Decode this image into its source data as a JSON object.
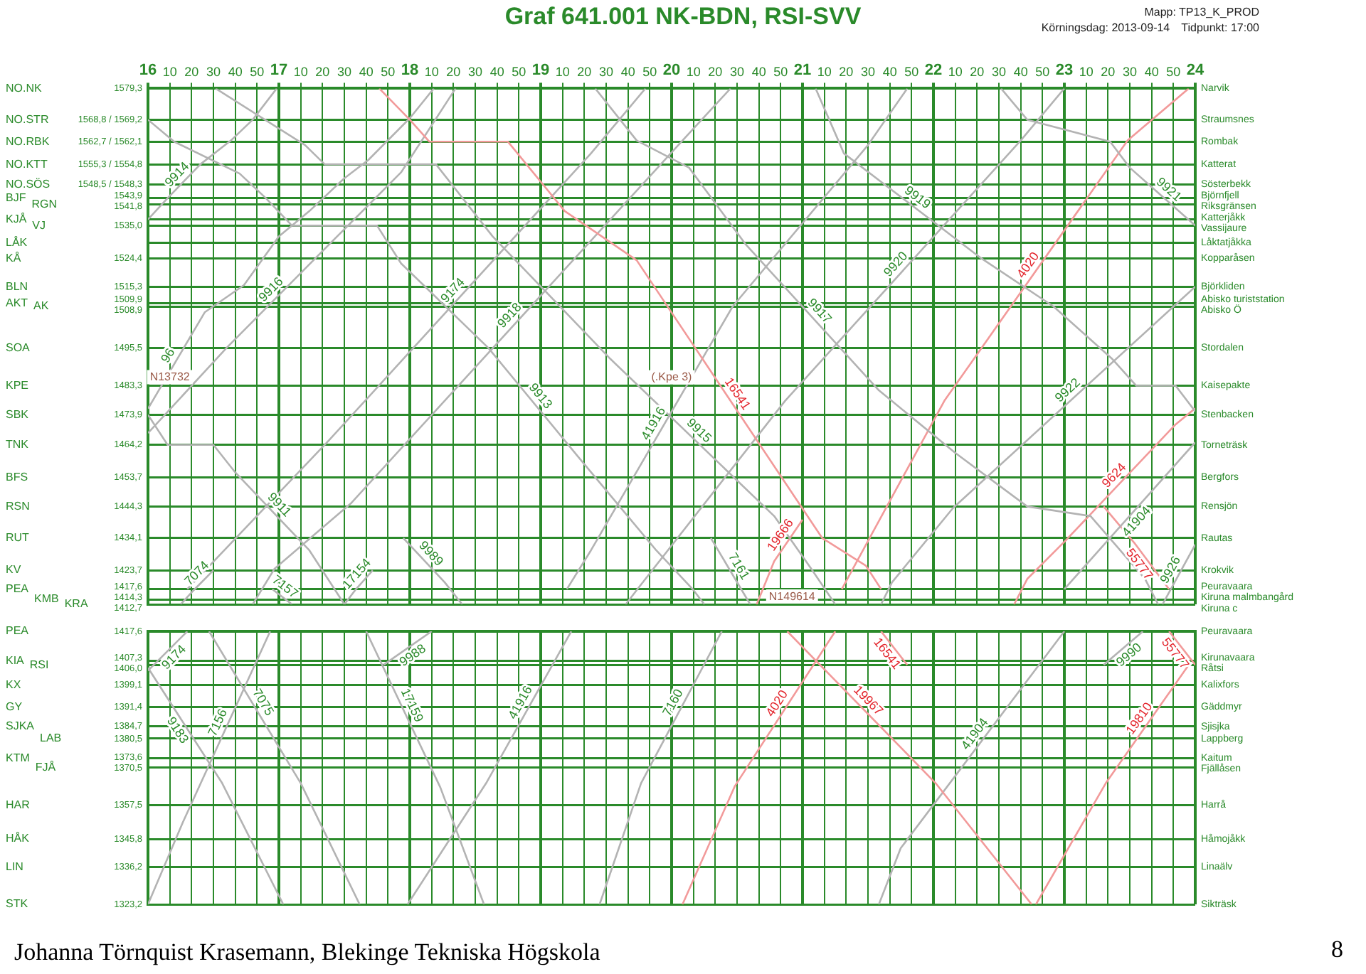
{
  "chart_data": [
    {
      "type": "line",
      "title": "Graf 641.001 NK-BDN, RSI-SVV",
      "annotations": [
        "Mapp: TP13_K_PROD",
        "Körningsdag: 2013-09-14",
        "Tidpunkt: 17:00",
        "(.Kpe 3)",
        "N149614",
        "NO.NK",
        "NO.STR",
        "NO.RBK",
        "NO.KTT",
        "NO.SÖS",
        "BJF",
        "RGN",
        "KJÅ",
        "VJ",
        "LÅK",
        "KÅ",
        "BLN",
        "AKT",
        "AK",
        "SOA",
        "KPE",
        "SBK",
        "TNK",
        "BFS",
        "RSN",
        "RUT",
        "KV",
        "PEA",
        "KMB",
        "KRA",
        "Narvik",
        "Straumsnes",
        "Rombak",
        "Katterat",
        "Sösterbekk",
        "Björnfjell",
        "Riksgränsen",
        "Katterjåkk",
        "Vassijaure",
        "Låktatjåkka",
        "Kopparåsen",
        "Björkliden",
        "Abisko turiststation",
        "Abisko Ö",
        "Stordalen",
        "Kaisepakte",
        "Stenbacken",
        "Torneträsk",
        "Bergfors",
        "Rensjön",
        "Rautas",
        "Krokvik",
        "Peuravaara",
        "Kiruna malmbangård",
        "Kiruna c",
        {
          "text": "N13732",
          "x": "2013-09-14T16:10",
          "y": 1483.3
        }
      ],
      "xlim": [
        "2013-09-14T16:00",
        "2013-09-15T00:00"
      ],
      "xticks": [
        {
          "value": "2013-09-14T16:00",
          "label": "16"
        },
        {
          "value": "2013-09-14T16:10",
          "label": "10"
        },
        {
          "value": "2013-09-14T16:20",
          "label": "20"
        },
        {
          "value": "2013-09-14T16:30",
          "label": "30"
        },
        {
          "value": "2013-09-14T16:40",
          "label": "40"
        },
        {
          "value": "2013-09-14T16:50",
          "label": "50"
        },
        {
          "value": "2013-09-14T17:00",
          "label": "17"
        },
        {
          "value": "2013-09-14T17:10",
          "label": "10"
        },
        {
          "value": "2013-09-14T17:20",
          "label": "20"
        },
        {
          "value": "2013-09-14T17:30",
          "label": "30"
        },
        {
          "value": "2013-09-14T17:40",
          "label": "40"
        },
        {
          "value": "2013-09-14T17:50",
          "label": "50"
        },
        {
          "value": "2013-09-14T18:00",
          "label": "18"
        },
        {
          "value": "2013-09-14T18:10",
          "label": "10"
        },
        {
          "value": "2013-09-14T18:20",
          "label": "20"
        },
        {
          "value": "2013-09-14T18:30",
          "label": "30"
        },
        {
          "value": "2013-09-14T18:40",
          "label": "40"
        },
        {
          "value": "2013-09-14T18:50",
          "label": "50"
        },
        {
          "value": "2013-09-14T19:00",
          "label": "19"
        },
        {
          "value": "2013-09-14T19:10",
          "label": "10"
        },
        {
          "value": "2013-09-14T19:20",
          "label": "20"
        },
        {
          "value": "2013-09-14T19:30",
          "label": "30"
        },
        {
          "value": "2013-09-14T19:40",
          "label": "40"
        },
        {
          "value": "2013-09-14T19:50",
          "label": "50"
        },
        {
          "value": "2013-09-14T20:00",
          "label": "20"
        },
        {
          "value": "2013-09-14T20:10",
          "label": "10"
        },
        {
          "value": "2013-09-14T20:20",
          "label": "20"
        },
        {
          "value": "2013-09-14T20:30",
          "label": "30"
        },
        {
          "value": "2013-09-14T20:40",
          "label": "40"
        },
        {
          "value": "2013-09-14T20:50",
          "label": "50"
        },
        {
          "value": "2013-09-14T21:00",
          "label": "21"
        },
        {
          "value": "2013-09-14T21:10",
          "label": "10"
        },
        {
          "value": "2013-09-14T21:20",
          "label": "20"
        },
        {
          "value": "2013-09-14T21:30",
          "label": "30"
        },
        {
          "value": "2013-09-14T21:40",
          "label": "40"
        },
        {
          "value": "2013-09-14T21:50",
          "label": "50"
        },
        {
          "value": "2013-09-14T22:00",
          "label": "22"
        },
        {
          "value": "2013-09-14T22:10",
          "label": "10"
        },
        {
          "value": "2013-09-14T22:20",
          "label": "20"
        },
        {
          "value": "2013-09-14T22:30",
          "label": "30"
        },
        {
          "value": "2013-09-14T22:40",
          "label": "40"
        },
        {
          "value": "2013-09-14T22:50",
          "label": "50"
        },
        {
          "value": "2013-09-14T23:00",
          "label": "23"
        },
        {
          "value": "2013-09-14T23:10",
          "label": "10"
        },
        {
          "value": "2013-09-14T23:20",
          "label": "20"
        },
        {
          "value": "2013-09-14T23:30",
          "label": "30"
        },
        {
          "value": "2013-09-14T23:40",
          "label": "40"
        },
        {
          "value": "2013-09-14T23:50",
          "label": "50"
        },
        {
          "value": "2013-09-15T00:00",
          "label": "24"
        }
      ],
      "ylim": [
        1412.7,
        1579.3
      ],
      "yticks": [
        {
          "value": 1579.3,
          "label": "1579,3"
        },
        {
          "value": 1569.2,
          "label": "1568,8 / 1569,2"
        },
        {
          "value": 1562.1,
          "label": "1562,7 / 1562,1"
        },
        {
          "value": 1554.8,
          "label": "1555,3 / 1554,8"
        },
        {
          "value": 1548.3,
          "label": "1548,5 / 1548,3"
        },
        {
          "value": 1543.9,
          "label": "1543,9"
        },
        {
          "value": 1541.8,
          "label": "1541,8"
        },
        {
          "value": 1537.0,
          "label": null
        },
        {
          "value": 1535.0,
          "label": "1535,0"
        },
        {
          "value": 1529.5,
          "label": null
        },
        {
          "value": 1524.4,
          "label": "1524,4"
        },
        {
          "value": 1515.3,
          "label": "1515,3"
        },
        {
          "value": 1509.9,
          "label": "1509,9"
        },
        {
          "value": 1508.9,
          "label": "1508,9"
        },
        {
          "value": 1495.5,
          "label": "1495,5"
        },
        {
          "value": 1483.3,
          "label": "1483,3"
        },
        {
          "value": 1473.9,
          "label": "1473,9"
        },
        {
          "value": 1464.2,
          "label": "1464,2"
        },
        {
          "value": 1453.7,
          "label": "1453,7"
        },
        {
          "value": 1444.3,
          "label": "1444,3"
        },
        {
          "value": 1434.1,
          "label": "1434,1"
        },
        {
          "value": 1423.7,
          "label": "1423,7"
        },
        {
          "value": 1417.6,
          "label": "1417,6"
        },
        {
          "value": 1414.3,
          "label": "1414,3"
        },
        {
          "value": 1412.7,
          "label": "1412,7"
        }
      ],
      "grid": true,
      "series": [
        {
          "name": "9911",
          "color": "#b3b3b3",
          "x": [
            "2013-09-14T16:00",
            "2013-09-14T16:09",
            "2013-09-14T16:30",
            "2013-09-14T16:40",
            "2013-09-14T17:14",
            "2013-09-14T17:30"
          ],
          "values": [
            1473.9,
            1464.2,
            1464.2,
            1455.3,
            1430.1,
            1412.7
          ]
        },
        {
          "name": "9913",
          "color": "#b3b3b3",
          "x": [
            "2013-09-14T16:00",
            "2013-09-14T16:12",
            "2013-09-14T16:42",
            "2013-09-14T16:54",
            "2013-09-14T17:06",
            "2013-09-14T17:45",
            "2013-09-14T17:56",
            "2013-09-14T18:36",
            "2013-09-14T19:17",
            "2013-09-14T19:53",
            "2013-09-14T20:10",
            "2013-09-14T20:15"
          ],
          "values": [
            1569.2,
            1562.1,
            1551.8,
            1543.9,
            1535.0,
            1535.0,
            1522.8,
            1495.5,
            1460.5,
            1430.1,
            1417.3,
            1412.7
          ]
        },
        {
          "name": "9915",
          "color": "#b3b3b3",
          "x": [
            "2013-09-14T16:31",
            "2013-09-14T17:12",
            "2013-09-14T17:21",
            "2013-09-14T18:12",
            "2013-09-14T18:38",
            "2013-09-14T19:32",
            "2013-09-14T20:47",
            "2013-09-14T21:04",
            "2013-09-14T21:15"
          ],
          "values": [
            1579.3,
            1561.0,
            1554.8,
            1554.8,
            1531.5,
            1491.9,
            1441.2,
            1424.2,
            1412.7
          ]
        },
        {
          "name": "16541",
          "color": "#f29a9a",
          "x": [
            "2013-09-14T17:46",
            "2013-09-14T18:00",
            "2013-09-14T18:09",
            "2013-09-14T18:45",
            "2013-09-14T19:11",
            "2013-09-14T19:44",
            "2013-09-14T21:09",
            "2013-09-14T21:29",
            "2013-09-14T21:36"
          ],
          "values": [
            1579.3,
            1569.2,
            1562.1,
            1562.1,
            1539.7,
            1523.8,
            1434.1,
            1425.2,
            1417.6
          ]
        },
        {
          "name": "9917",
          "color": "#b3b3b3",
          "x": [
            "2013-09-14T19:25",
            "2013-09-14T19:44",
            "2013-09-14T20:08",
            "2013-09-14T20:34",
            "2013-09-14T21:35",
            "2013-09-14T22:10",
            "2013-09-14T22:43",
            "2013-09-14T23:12",
            "2013-09-14T23:37",
            "2013-09-14T23:43"
          ],
          "values": [
            1579.3,
            1562.5,
            1553.7,
            1528.9,
            1481.8,
            1461.6,
            1444.3,
            1441.2,
            1420.9,
            1412.7
          ]
        },
        {
          "name": "9919",
          "color": "#b3b3b3",
          "x": [
            "2013-09-14T21:06",
            "2013-09-14T21:19",
            "2013-09-14T22:21",
            "2013-09-14T22:55",
            "2013-09-14T23:22",
            "2013-09-14T23:33",
            "2013-09-14T23:51",
            "2013-09-15T00:00"
          ],
          "values": [
            1579.3,
            1558.3,
            1524.9,
            1508.9,
            1491.9,
            1483.3,
            1483.3,
            1475.0
          ]
        },
        {
          "name": "9921",
          "color": "#b3b3b3",
          "x": [
            "2013-09-14T22:31",
            "2013-09-14T22:43",
            "2013-09-14T23:21",
            "2013-09-14T23:30",
            "2013-09-15T00:00"
          ],
          "values": [
            1579.3,
            1569.2,
            1562.1,
            1553.7,
            1535.0
          ]
        },
        {
          "name": "9989",
          "color": "#b3b3b3",
          "x": [
            "2013-09-14T17:57",
            "2013-09-14T18:16",
            "2013-09-14T18:24"
          ],
          "values": [
            1434.1,
            1419.8,
            1412.7
          ]
        },
        {
          "name": "7161",
          "color": "#b3b3b3",
          "x": [
            "2013-09-14T20:18",
            "2013-09-14T20:36"
          ],
          "values": [
            1434.1,
            1412.7
          ]
        },
        {
          "name": "7157",
          "color": "#b3b3b3",
          "x": [
            "2013-09-14T16:57",
            "2013-09-14T17:06"
          ],
          "values": [
            1417.6,
            1412.7
          ]
        },
        {
          "name": "9914",
          "color": "#b3b3b3",
          "x": [
            "2013-09-14T16:00",
            "2013-09-14T16:09",
            "2013-09-14T16:24",
            "2013-09-14T16:38",
            "2013-09-14T16:48",
            "2013-09-14T16:59"
          ],
          "values": [
            1537.0,
            1543.9,
            1554.8,
            1562.5,
            1569.2,
            1579.3
          ]
        },
        {
          "name": "96",
          "color": "#b3b3b3",
          "x": [
            "2013-09-14T16:00",
            "2013-09-14T16:26",
            "2013-09-14T16:44",
            "2013-09-14T17:00",
            "2013-09-14T17:14",
            "2013-09-14T17:30",
            "2013-09-14T17:41",
            "2013-09-14T18:00",
            "2013-09-14T18:11"
          ],
          "values": [
            1475.9,
            1507.0,
            1515.8,
            1531.5,
            1539.7,
            1550.3,
            1556.2,
            1569.7,
            1579.3
          ]
        },
        {
          "name": "9916",
          "color": "#b3b3b3",
          "x": [
            "2013-09-14T16:00",
            "2013-09-14T16:36",
            "2013-09-14T17:23",
            "2013-09-14T17:56",
            "2013-09-14T18:21"
          ],
          "values": [
            1468.0,
            1495.5,
            1528.9,
            1552.2,
            1579.3
          ]
        },
        {
          "name": "9918",
          "color": "#b3b3b3",
          "x": [
            "2013-09-14T16:48",
            "2013-09-14T16:58",
            "2013-09-14T17:33",
            "2013-09-14T20:05",
            "2013-09-14T20:27"
          ],
          "values": [
            1412.7,
            1424.2,
            1445.3,
            1562.5,
            1579.3
          ]
        },
        {
          "name": "9174",
          "color": "#b3b3b3",
          "x": [
            "2013-09-14T16:18",
            "2013-09-14T17:23",
            "2013-09-14T19:23",
            "2013-09-14T19:48"
          ],
          "values": [
            1417.6,
            1465.7,
            1558.3,
            1579.3
          ]
        },
        {
          "name": "7074",
          "color": "#b3b3b3",
          "x": [
            "2013-09-14T16:15",
            "2013-09-14T16:21",
            "2013-09-14T16:30"
          ],
          "values": [
            1412.7,
            1417.3,
            1423.7
          ]
        },
        {
          "name": "17154",
          "color": "#b3b3b3",
          "x": [
            "2013-09-14T17:30",
            "2013-09-14T17:35",
            "2013-09-14T17:43"
          ],
          "values": [
            1412.7,
            1417.3,
            1423.7
          ]
        },
        {
          "name": "9920",
          "color": "#b3b3b3",
          "x": [
            "2013-09-14T19:39",
            "2013-09-14T19:44",
            "2013-09-14T20:52",
            "2013-09-14T22:40",
            "2013-09-14T23:00"
          ],
          "values": [
            1412.7,
            1417.3,
            1478.4,
            1562.5,
            1579.3
          ]
        },
        {
          "name": "41916",
          "color": "#b3b3b3",
          "x": [
            "2013-09-14T19:12",
            "2013-09-14T19:23",
            "2013-09-14T20:28",
            "2013-09-14T21:30",
            "2013-09-14T21:48"
          ],
          "values": [
            1417.6,
            1430.1,
            1508.9,
            1561.0,
            1579.3
          ]
        },
        {
          "name": "4020",
          "color": "#f29a9a",
          "x": [
            "2013-09-14T21:18",
            "2013-09-14T22:05",
            "2013-09-14T23:29",
            "2013-09-14T23:57"
          ],
          "values": [
            1417.6,
            1478.4,
            1562.5,
            1579.3
          ]
        },
        {
          "name": "9922",
          "color": "#b3b3b3",
          "x": [
            "2013-09-14T21:36",
            "2013-09-14T21:41",
            "2013-09-14T22:09",
            "2013-09-15T00:00"
          ],
          "values": [
            1412.7,
            1419.8,
            1443.8,
            1515.3
          ]
        },
        {
          "name": "9624",
          "color": "#f29a9a",
          "x": [
            "2013-09-14T22:37",
            "2013-09-14T22:43",
            "2013-09-14T23:01",
            "2013-09-14T23:51",
            "2013-09-15T00:00"
          ],
          "values": [
            1412.7,
            1420.9,
            1433.6,
            1470.8,
            1476.0
          ]
        },
        {
          "name": "9926",
          "color": "#b3b3b3",
          "x": [
            "2013-09-14T23:45",
            "2013-09-15T00:00"
          ],
          "values": [
            1412.7,
            1432.0
          ]
        },
        {
          "name": "41904",
          "color": "#b3b3b3",
          "x": [
            "2013-09-14T23:00",
            "2013-09-15T00:00"
          ],
          "values": [
            1417.6,
            1465.0
          ]
        },
        {
          "name": "19666",
          "color": "#f29a9a",
          "x": [
            "2013-09-14T20:39",
            "2013-09-14T20:47",
            "2013-09-14T21:00"
          ],
          "values": [
            1412.7,
            1426.6,
            1440.0
          ]
        },
        {
          "name": "55777",
          "color": "#f29a9a",
          "x": [
            "2013-09-14T23:18",
            "2013-09-14T23:32",
            "2013-09-14T23:48"
          ],
          "values": [
            1444.3,
            1432.6,
            1417.6
          ]
        }
      ]
    },
    {
      "type": "line",
      "annotations": [
        "PEA",
        "KIA",
        "RSI",
        "KX",
        "GY",
        "SJKA",
        "LAB",
        "KTM",
        "FJÅ",
        "HAR",
        "HÅK",
        "LIN",
        "STK",
        "Peuravaara",
        "Kirunavaara",
        "Råtsi",
        "Kalixfors",
        "Gäddmyr",
        "Sjisjka",
        "Lappberg",
        "Kaitum",
        "Fjällåsen",
        "Harrå",
        "Håmojåkk",
        "Linaälv",
        "Sikträsk",
        "Johanna Törnquist Krasemann, Blekinge Tekniska Högskola",
        "8"
      ],
      "xlim": [
        "2013-09-14T16:00",
        "2013-09-15T00:00"
      ],
      "xticks": [
        {
          "value": "2013-09-14T16:00",
          "label": null
        },
        {
          "value": "2013-09-14T16:10",
          "label": null
        },
        {
          "value": "2013-09-14T16:20",
          "label": null
        },
        {
          "value": "2013-09-14T16:30",
          "label": null
        },
        {
          "value": "2013-09-14T16:40",
          "label": null
        },
        {
          "value": "2013-09-14T16:50",
          "label": null
        },
        {
          "value": "2013-09-14T17:00",
          "label": null
        },
        {
          "value": "2013-09-14T17:10",
          "label": null
        },
        {
          "value": "2013-09-14T17:20",
          "label": null
        },
        {
          "value": "2013-09-14T17:30",
          "label": null
        },
        {
          "value": "2013-09-14T17:40",
          "label": null
        },
        {
          "value": "2013-09-14T17:50",
          "label": null
        },
        {
          "value": "2013-09-14T18:00",
          "label": null
        },
        {
          "value": "2013-09-14T18:10",
          "label": null
        },
        {
          "value": "2013-09-14T18:20",
          "label": null
        },
        {
          "value": "2013-09-14T18:30",
          "label": null
        },
        {
          "value": "2013-09-14T18:40",
          "label": null
        },
        {
          "value": "2013-09-14T18:50",
          "label": null
        },
        {
          "value": "2013-09-14T19:00",
          "label": null
        },
        {
          "value": "2013-09-14T19:10",
          "label": null
        },
        {
          "value": "2013-09-14T19:20",
          "label": null
        },
        {
          "value": "2013-09-14T19:30",
          "label": null
        },
        {
          "value": "2013-09-14T19:40",
          "label": null
        },
        {
          "value": "2013-09-14T19:50",
          "label": null
        },
        {
          "value": "2013-09-14T20:00",
          "label": null
        },
        {
          "value": "2013-09-14T20:10",
          "label": null
        },
        {
          "value": "2013-09-14T20:20",
          "label": null
        },
        {
          "value": "2013-09-14T20:30",
          "label": null
        },
        {
          "value": "2013-09-14T20:40",
          "label": null
        },
        {
          "value": "2013-09-14T20:50",
          "label": null
        },
        {
          "value": "2013-09-14T21:00",
          "label": null
        },
        {
          "value": "2013-09-14T21:10",
          "label": null
        },
        {
          "value": "2013-09-14T21:20",
          "label": null
        },
        {
          "value": "2013-09-14T21:30",
          "label": null
        },
        {
          "value": "2013-09-14T21:40",
          "label": null
        },
        {
          "value": "2013-09-14T21:50",
          "label": null
        },
        {
          "value": "2013-09-14T22:00",
          "label": null
        },
        {
          "value": "2013-09-14T22:10",
          "label": null
        },
        {
          "value": "2013-09-14T22:20",
          "label": null
        },
        {
          "value": "2013-09-14T22:30",
          "label": null
        },
        {
          "value": "2013-09-14T22:40",
          "label": null
        },
        {
          "value": "2013-09-14T22:50",
          "label": null
        },
        {
          "value": "2013-09-14T23:00",
          "label": null
        },
        {
          "value": "2013-09-14T23:10",
          "label": null
        },
        {
          "value": "2013-09-14T23:20",
          "label": null
        },
        {
          "value": "2013-09-14T23:30",
          "label": null
        },
        {
          "value": "2013-09-14T23:40",
          "label": null
        },
        {
          "value": "2013-09-14T23:50",
          "label": null
        },
        {
          "value": "2013-09-15T00:00",
          "label": null
        }
      ],
      "tick_labels": "y",
      "ylim": [
        1323.2,
        1417.6
      ],
      "yticks": [
        {
          "value": 1417.6,
          "label": "1417,6"
        },
        {
          "value": 1407.3,
          "label": "1407,3"
        },
        {
          "value": 1406.0,
          "label": "1406,0"
        },
        {
          "value": 1399.1,
          "label": "1399,1"
        },
        {
          "value": 1391.4,
          "label": "1391,4"
        },
        {
          "value": 1384.7,
          "label": "1384,7"
        },
        {
          "value": 1380.5,
          "label": "1380,5"
        },
        {
          "value": 1373.6,
          "label": "1373,6"
        },
        {
          "value": 1370.5,
          "label": "1370,5"
        },
        {
          "value": 1357.5,
          "label": "1357,5"
        },
        {
          "value": 1345.8,
          "label": "1345,8"
        },
        {
          "value": 1336.2,
          "label": "1336,2"
        },
        {
          "value": 1323.2,
          "label": "1323,2"
        }
      ],
      "grid": true,
      "series": [
        {
          "name": "9174",
          "color": "#b3b3b3",
          "x": [
            "2013-09-14T16:00",
            "2013-09-14T16:18"
          ],
          "values": [
            1404.0,
            1417.6
          ]
        },
        {
          "name": "7075",
          "color": "#b3b3b3",
          "x": [
            "2013-09-14T16:28",
            "2013-09-14T17:10",
            "2013-09-14T17:37"
          ],
          "values": [
            1417.6,
            1365.1,
            1323.2
          ]
        },
        {
          "name": "7156",
          "color": "#b3b3b3",
          "x": [
            "2013-09-14T16:00",
            "2013-09-14T16:16",
            "2013-09-14T16:56"
          ],
          "values": [
            1323.2,
            1351.6,
            1417.6
          ]
        },
        {
          "name": "9183",
          "color": "#b3b3b3",
          "x": [
            "2013-09-14T16:00",
            "2013-09-14T16:34",
            "2013-09-14T17:02"
          ],
          "values": [
            1405.0,
            1365.1,
            1323.2
          ]
        },
        {
          "name": "17159",
          "color": "#b3b3b3",
          "x": [
            "2013-09-14T17:40",
            "2013-09-14T18:14",
            "2013-09-14T18:34"
          ],
          "values": [
            1417.6,
            1363.6,
            1323.2
          ]
        },
        {
          "name": "9988",
          "color": "#b3b3b3",
          "x": [
            "2013-09-14T17:48",
            "2013-09-14T18:10"
          ],
          "values": [
            1406.0,
            1417.6
          ]
        },
        {
          "name": "41916",
          "color": "#b3b3b3",
          "x": [
            "2013-09-14T17:59",
            "2013-09-14T18:35",
            "2013-09-14T19:14"
          ],
          "values": [
            1323.2,
            1365.1,
            1417.6
          ]
        },
        {
          "name": "7160",
          "color": "#b3b3b3",
          "x": [
            "2013-09-14T19:27",
            "2013-09-14T19:46",
            "2013-09-14T20:23"
          ],
          "values": [
            1323.2,
            1365.1,
            1417.6
          ]
        },
        {
          "name": "4020",
          "color": "#f29a9a",
          "x": [
            "2013-09-14T20:05",
            "2013-09-14T20:29",
            "2013-09-14T21:15"
          ],
          "values": [
            1323.2,
            1364.1,
            1417.6
          ]
        },
        {
          "name": "19967",
          "color": "#f29a9a",
          "x": [
            "2013-09-14T20:53",
            "2013-09-14T22:01",
            "2013-09-14T22:45"
          ],
          "values": [
            1417.6,
            1365.1,
            1323.2
          ]
        },
        {
          "name": "16541",
          "color": "#f29a9a",
          "x": [
            "2013-09-14T21:36",
            "2013-09-14T21:48"
          ],
          "values": [
            1417.6,
            1406.0
          ]
        },
        {
          "name": "41904",
          "color": "#b3b3b3",
          "x": [
            "2013-09-14T21:35",
            "2013-09-14T21:45",
            "2013-09-14T23:00"
          ],
          "values": [
            1323.2,
            1342.6,
            1417.6
          ]
        },
        {
          "name": "9990",
          "color": "#b3b3b3",
          "x": [
            "2013-09-14T23:18",
            "2013-09-14T23:36"
          ],
          "values": [
            1406.0,
            1417.6
          ]
        },
        {
          "name": "55777",
          "color": "#f29a9a",
          "x": [
            "2013-09-14T23:48",
            "2013-09-15T00:00"
          ],
          "values": [
            1417.6,
            1406.0
          ]
        },
        {
          "name": "19810",
          "color": "#f29a9a",
          "x": [
            "2013-09-14T22:47",
            "2013-09-14T23:19",
            "2013-09-14T23:57"
          ],
          "values": [
            1323.2,
            1365.1,
            1406.0
          ]
        }
      ]
    }
  ]
}
